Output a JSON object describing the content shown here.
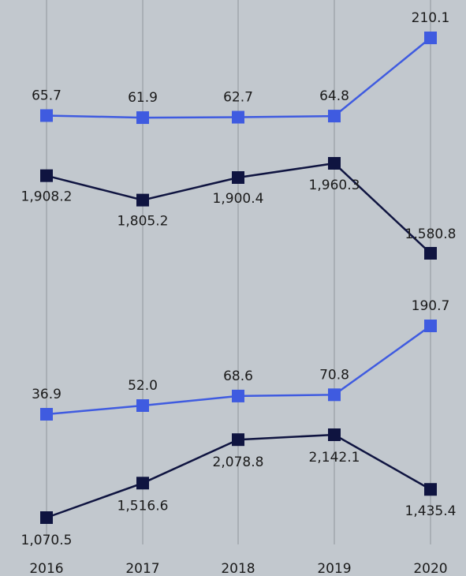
{
  "chart_data": {
    "type": "line",
    "x": [
      "2016",
      "2017",
      "2018",
      "2019",
      "2020"
    ],
    "grid": "vertical",
    "colors": {
      "background": "#c2c8ce",
      "light": "#3f5be0",
      "dark": "#0f1440",
      "grid": "#a9afb5"
    },
    "panels": [
      {
        "position": "top",
        "series": [
          {
            "color": "#3f5be0",
            "values": [
              65.7,
              61.9,
              62.7,
              64.8,
              210.1
            ],
            "labels": [
              "65.7",
              "61.9",
              "62.7",
              "64.8",
              "210.1"
            ]
          },
          {
            "color": "#0f1440",
            "values": [
              1908.2,
              1805.2,
              1900.4,
              1960.3,
              1580.8
            ],
            "labels": [
              "1,908.2",
              "1,805.2",
              "1,900.4",
              "1,960.3",
              "1,580.8"
            ]
          }
        ]
      },
      {
        "position": "bottom",
        "series": [
          {
            "color": "#3f5be0",
            "values": [
              36.9,
              52.0,
              68.6,
              70.8,
              190.7
            ],
            "labels": [
              "36.9",
              "52.0",
              "68.6",
              "70.8",
              "190.7"
            ]
          },
          {
            "color": "#0f1440",
            "values": [
              1070.5,
              1516.6,
              2078.8,
              2142.1,
              1435.4
            ],
            "labels": [
              "1,070.5",
              "1,516.6",
              "2,078.8",
              "2,142.1",
              "1,435.4"
            ]
          }
        ]
      }
    ]
  }
}
